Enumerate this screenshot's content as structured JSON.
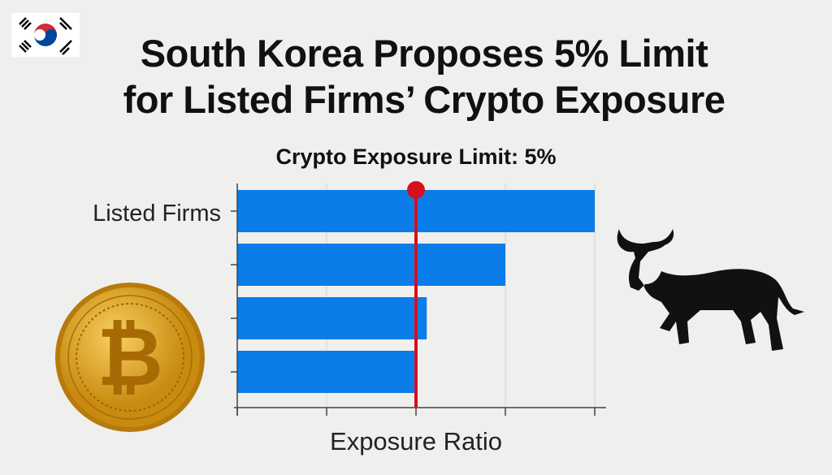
{
  "header": {
    "title_line1": "South Korea Proposes 5% Limit",
    "title_line2": "for Listed Firms’ Crypto Exposure",
    "flag_icon": "south-korea-flag-icon"
  },
  "decorations": {
    "left": "bitcoin-coin-icon",
    "right": "bull-icon"
  },
  "chart_data": {
    "type": "bar",
    "orientation": "horizontal",
    "title": "Crypto Exposure Limit: 5%",
    "xlabel": "Exposure Ratio",
    "ylabel": "",
    "categories": [
      "Listed Firms",
      "",
      "",
      ""
    ],
    "values": [
      10,
      7.5,
      5.3,
      5
    ],
    "xlim": [
      0,
      10
    ],
    "xticks": [
      0,
      2.5,
      5,
      7.5,
      10
    ],
    "limit_line": {
      "value": 5,
      "color": "#d4101f"
    },
    "bar_color": "#0a7de8",
    "grid": true
  }
}
